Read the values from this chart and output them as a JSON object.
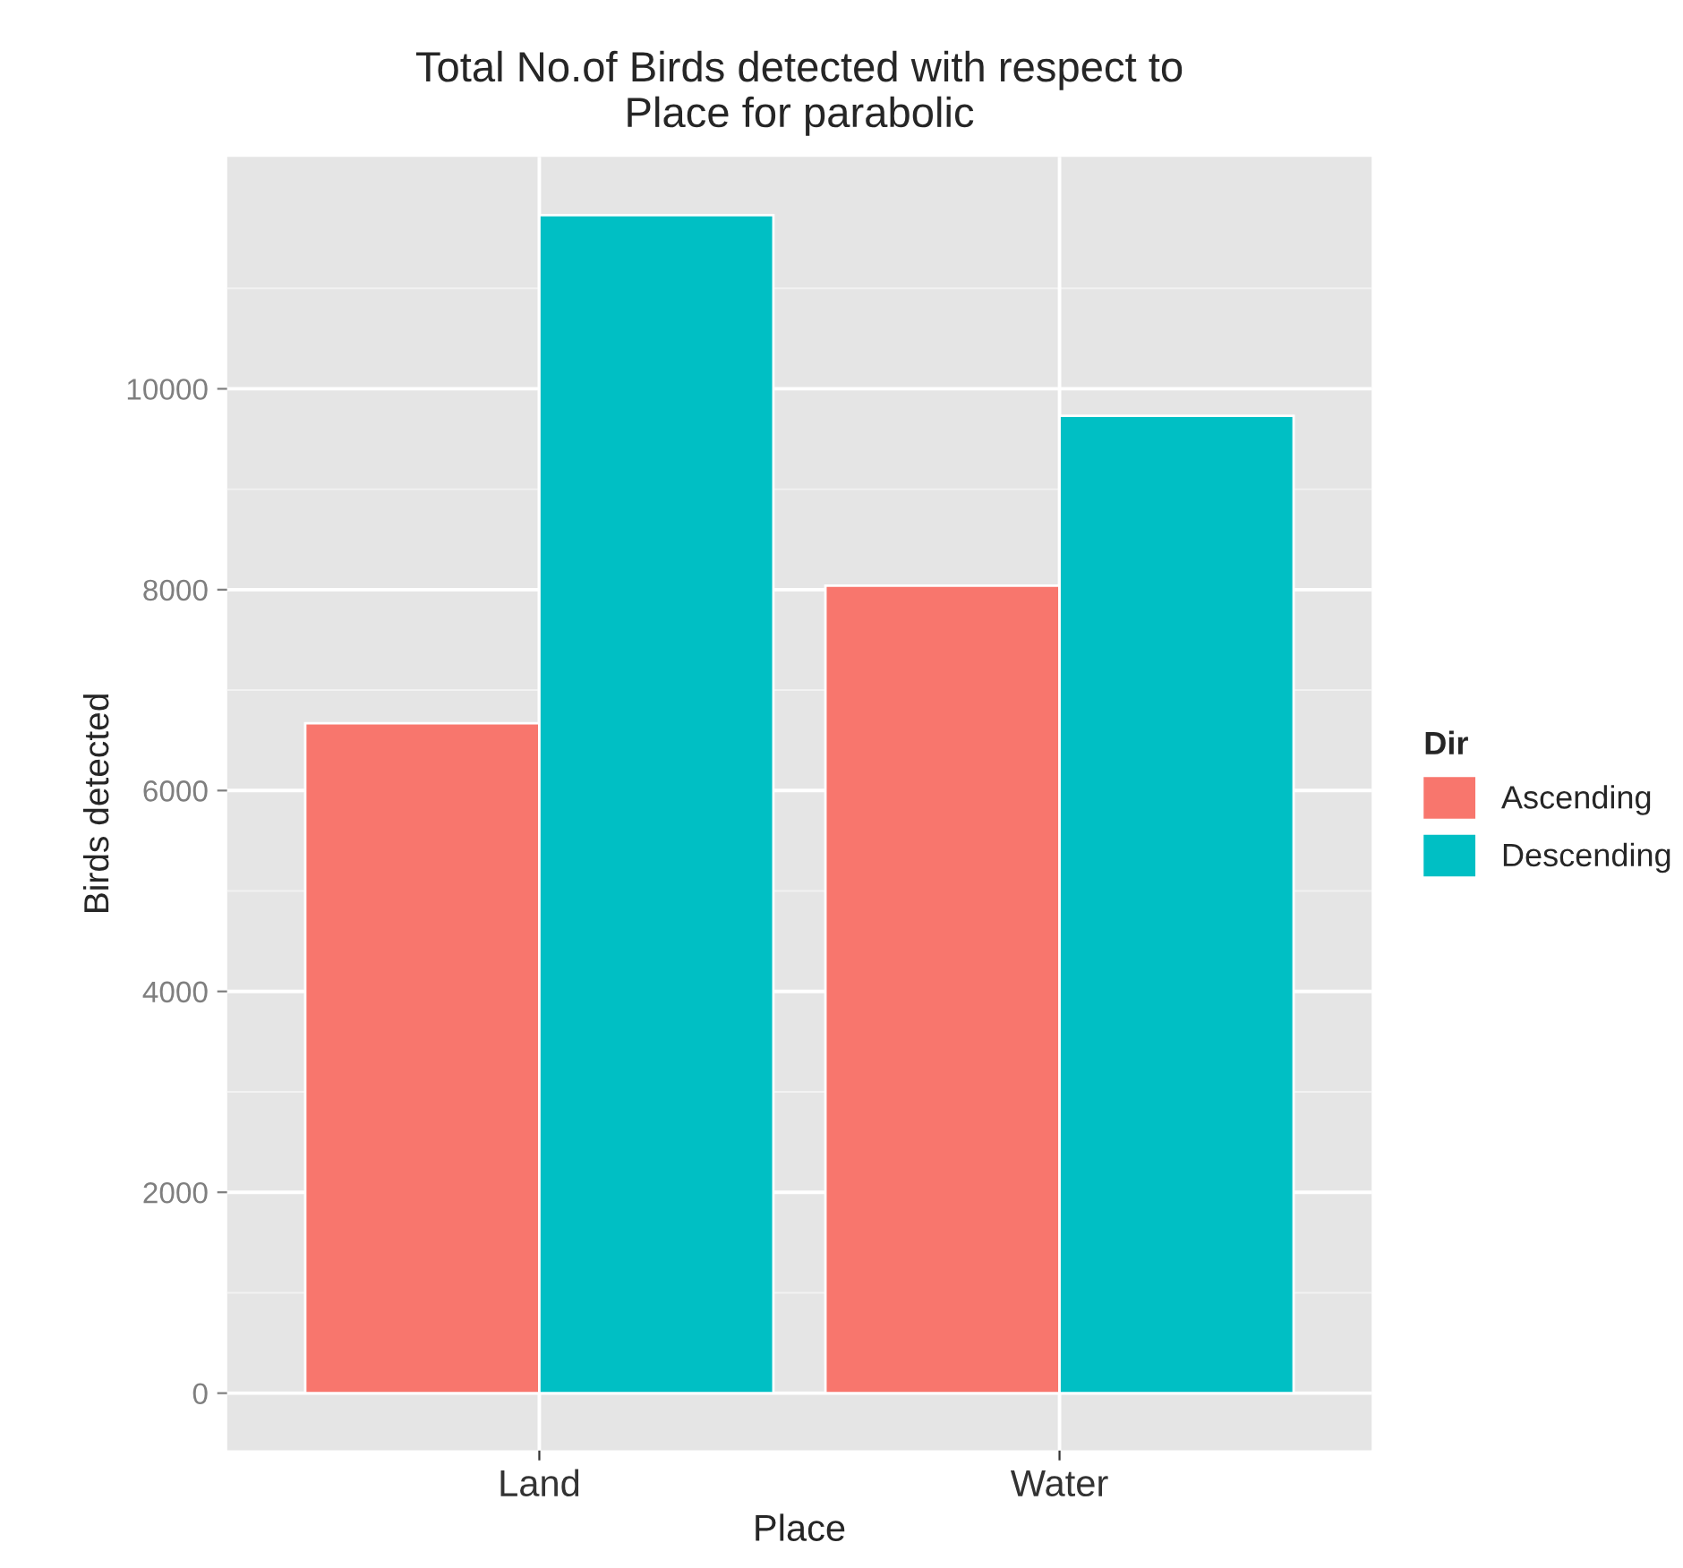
{
  "chart_data": {
    "type": "bar",
    "title": "Total No.of Birds detected with respect to\nPlace for parabolic",
    "xlabel": "Place",
    "ylabel": "Birds detected",
    "legend_title": "Dir",
    "categories": [
      "Land",
      "Water"
    ],
    "series": [
      {
        "name": "Ascending",
        "color": "#f8766d",
        "values": [
          6670,
          8040
        ]
      },
      {
        "name": "Descending",
        "color": "#00bfc4",
        "values": [
          11730,
          9730
        ]
      }
    ],
    "ylim": [
      -570,
      12310
    ],
    "yticks": [
      0,
      2000,
      4000,
      6000,
      8000,
      10000
    ],
    "grid": true,
    "legend": "right"
  }
}
